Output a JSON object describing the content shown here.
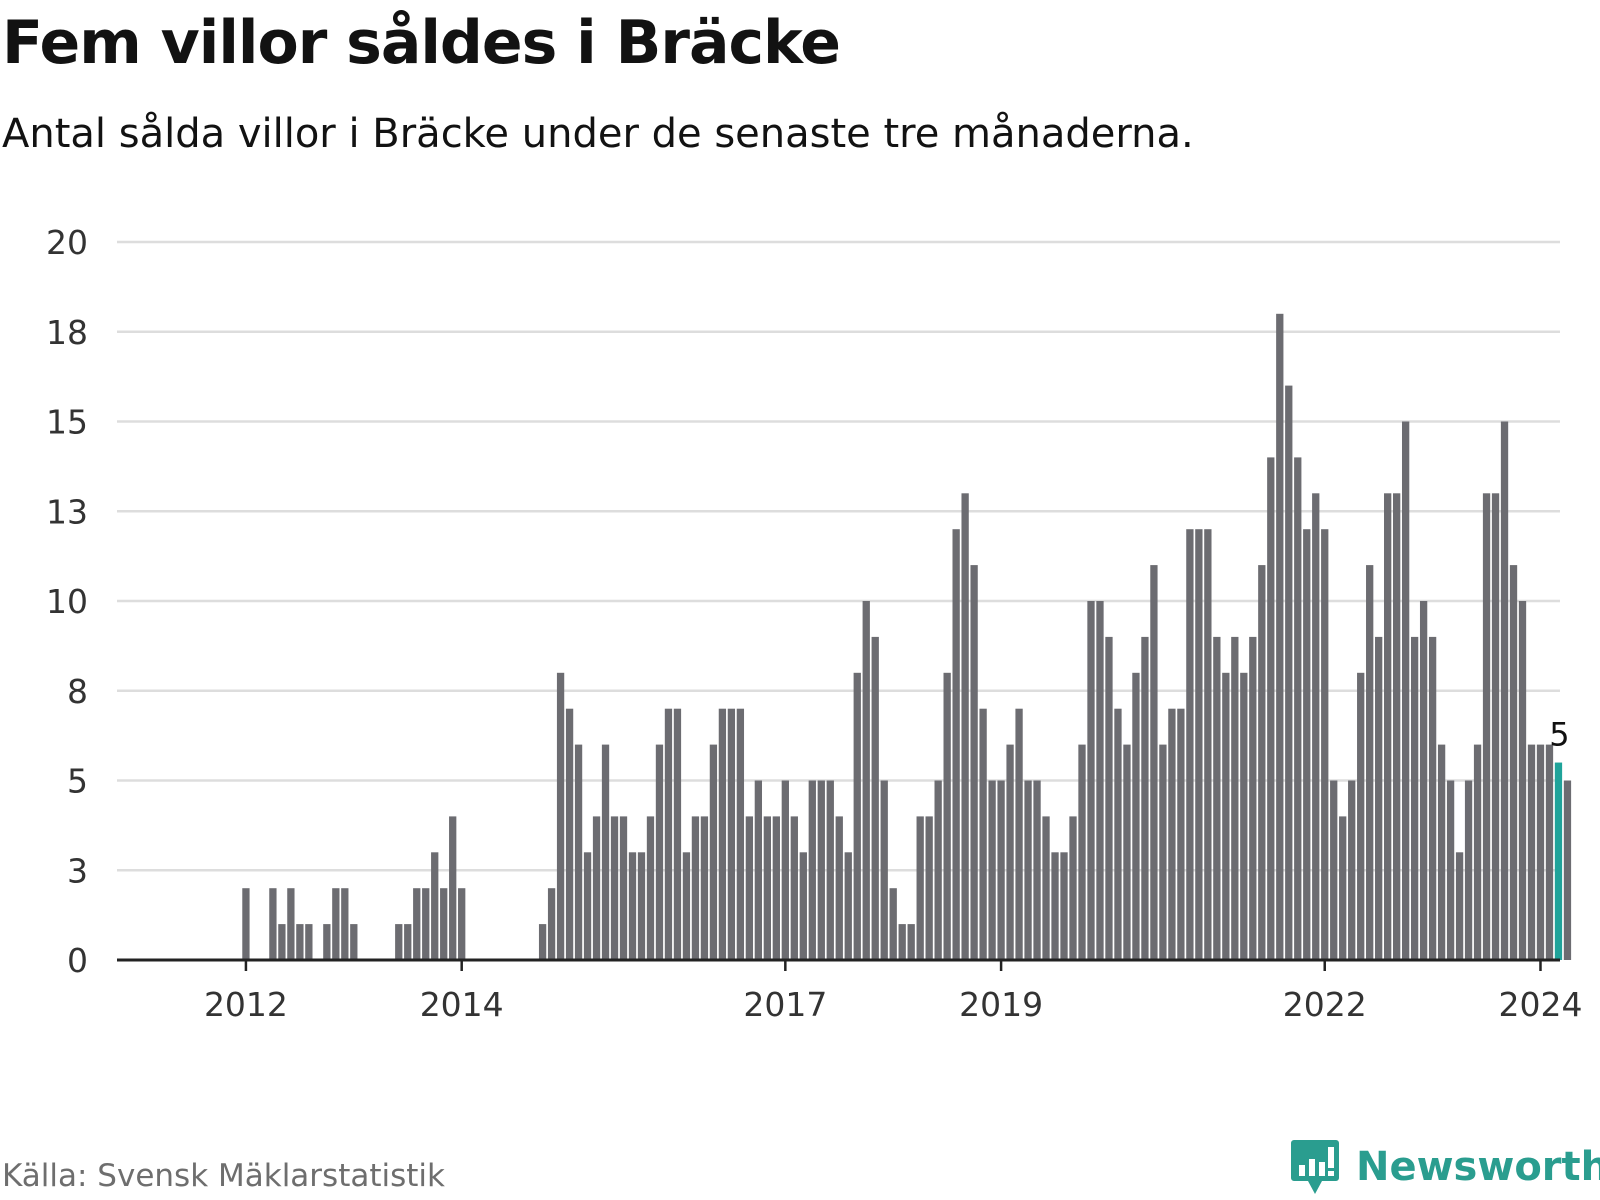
{
  "title": "Fem villor såldes i Bräcke",
  "subtitle": "Antal sålda villor i Bräcke under de senaste tre månaderna.",
  "source": "Källa: Svensk Mäklarstatistik",
  "brand": {
    "name": "Newsworthy",
    "icon": "bar-chart-speech-bubble-icon"
  },
  "colors": {
    "bar": "#6c6c71",
    "highlight": "#1fa39a",
    "grid": "#dddddd",
    "axis": "#222222",
    "brand": "#2a9d8f"
  },
  "chart_data": {
    "type": "bar",
    "title": "Fem villor såldes i Bräcke",
    "xlabel": "",
    "ylabel": "",
    "ylim": [
      0,
      20
    ],
    "yticks": [
      {
        "value": 0,
        "label": "0"
      },
      {
        "value": 2.5,
        "label": "3"
      },
      {
        "value": 5,
        "label": "5"
      },
      {
        "value": 7.5,
        "label": "8"
      },
      {
        "value": 10,
        "label": "10"
      },
      {
        "value": 12.5,
        "label": "13"
      },
      {
        "value": 15,
        "label": "15"
      },
      {
        "value": 17.5,
        "label": "18"
      },
      {
        "value": 20,
        "label": "20"
      }
    ],
    "xticks": [
      {
        "index": 7,
        "label": "2012"
      },
      {
        "index": 31,
        "label": "2014"
      },
      {
        "index": 67,
        "label": "2017"
      },
      {
        "index": 91,
        "label": "2019"
      },
      {
        "index": 127,
        "label": "2022"
      },
      {
        "index": 151,
        "label": "2024"
      }
    ],
    "values": [
      0,
      0,
      0,
      0,
      0,
      0,
      0,
      2,
      0,
      0,
      2,
      1,
      2,
      1,
      1,
      0,
      1,
      2,
      2,
      1,
      0,
      0,
      0,
      0,
      1,
      1,
      2,
      2,
      3,
      2,
      4,
      2,
      0,
      0,
      0,
      0,
      0,
      0,
      0,
      0,
      1,
      2,
      8,
      7,
      6,
      3,
      4,
      6,
      4,
      4,
      3,
      3,
      4,
      6,
      7,
      7,
      3,
      4,
      4,
      6,
      7,
      7,
      7,
      4,
      5,
      4,
      4,
      5,
      4,
      3,
      5,
      5,
      5,
      4,
      3,
      8,
      10,
      9,
      5,
      2,
      1,
      1,
      4,
      4,
      5,
      8,
      12,
      13,
      11,
      7,
      5,
      5,
      6,
      7,
      5,
      5,
      4,
      3,
      3,
      4,
      6,
      10,
      10,
      9,
      7,
      6,
      8,
      9,
      11,
      6,
      7,
      7,
      12,
      12,
      12,
      9,
      8,
      9,
      8,
      9,
      11,
      14,
      18,
      16,
      14,
      12,
      13,
      12,
      5,
      4,
      5,
      8,
      11,
      9,
      13,
      13,
      15,
      9,
      10,
      9,
      6,
      5,
      3,
      5,
      6,
      13,
      13,
      15,
      11,
      10,
      6,
      6,
      6,
      5.5,
      5
    ],
    "highlight_index": 153,
    "last_label": "5"
  }
}
